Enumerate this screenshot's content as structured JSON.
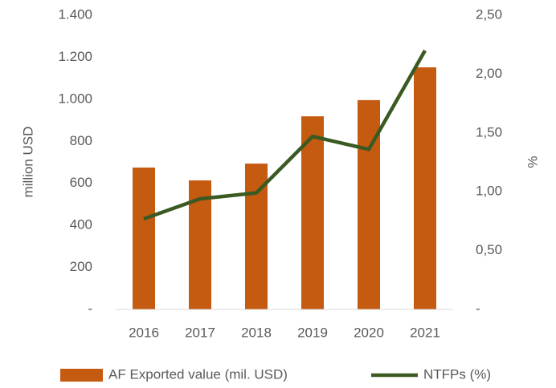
{
  "chart_data": {
    "type": "bar-line",
    "ylabel": "million USD",
    "y2label": "%",
    "categories": [
      "2016",
      "2017",
      "2018",
      "2019",
      "2020",
      "2021"
    ],
    "series": [
      {
        "name": "AF Exported value (mil. USD)",
        "type": "bar",
        "color": "#c55a11",
        "values": [
          675,
          614,
          694,
          919,
          996,
          1152
        ]
      },
      {
        "name": "NTFPs (%)",
        "type": "line",
        "axis": "y2",
        "color": "#3b5a22",
        "values": [
          0.77,
          0.94,
          0.99,
          1.47,
          1.36,
          2.2
        ]
      }
    ],
    "ylim": [
      0,
      1400
    ],
    "yticks": [
      {
        "value": 0,
        "label": "-"
      },
      200,
      400,
      600,
      800,
      {
        "value": 1000,
        "label": "1.000"
      },
      {
        "value": 1200,
        "label": "1.200"
      },
      {
        "value": 1400,
        "label": "1.400"
      }
    ],
    "y2lim": [
      0,
      2.5
    ],
    "y2ticks": [
      {
        "value": 0,
        "label": "-"
      },
      {
        "value": 0.5,
        "label": "0,50"
      },
      {
        "value": 1,
        "label": "1,00"
      },
      {
        "value": 1.5,
        "label": "1,50"
      },
      {
        "value": 2,
        "label": "2,00"
      },
      {
        "value": 2.5,
        "label": "2,50"
      }
    ],
    "grid": false,
    "legend": "bottom"
  }
}
